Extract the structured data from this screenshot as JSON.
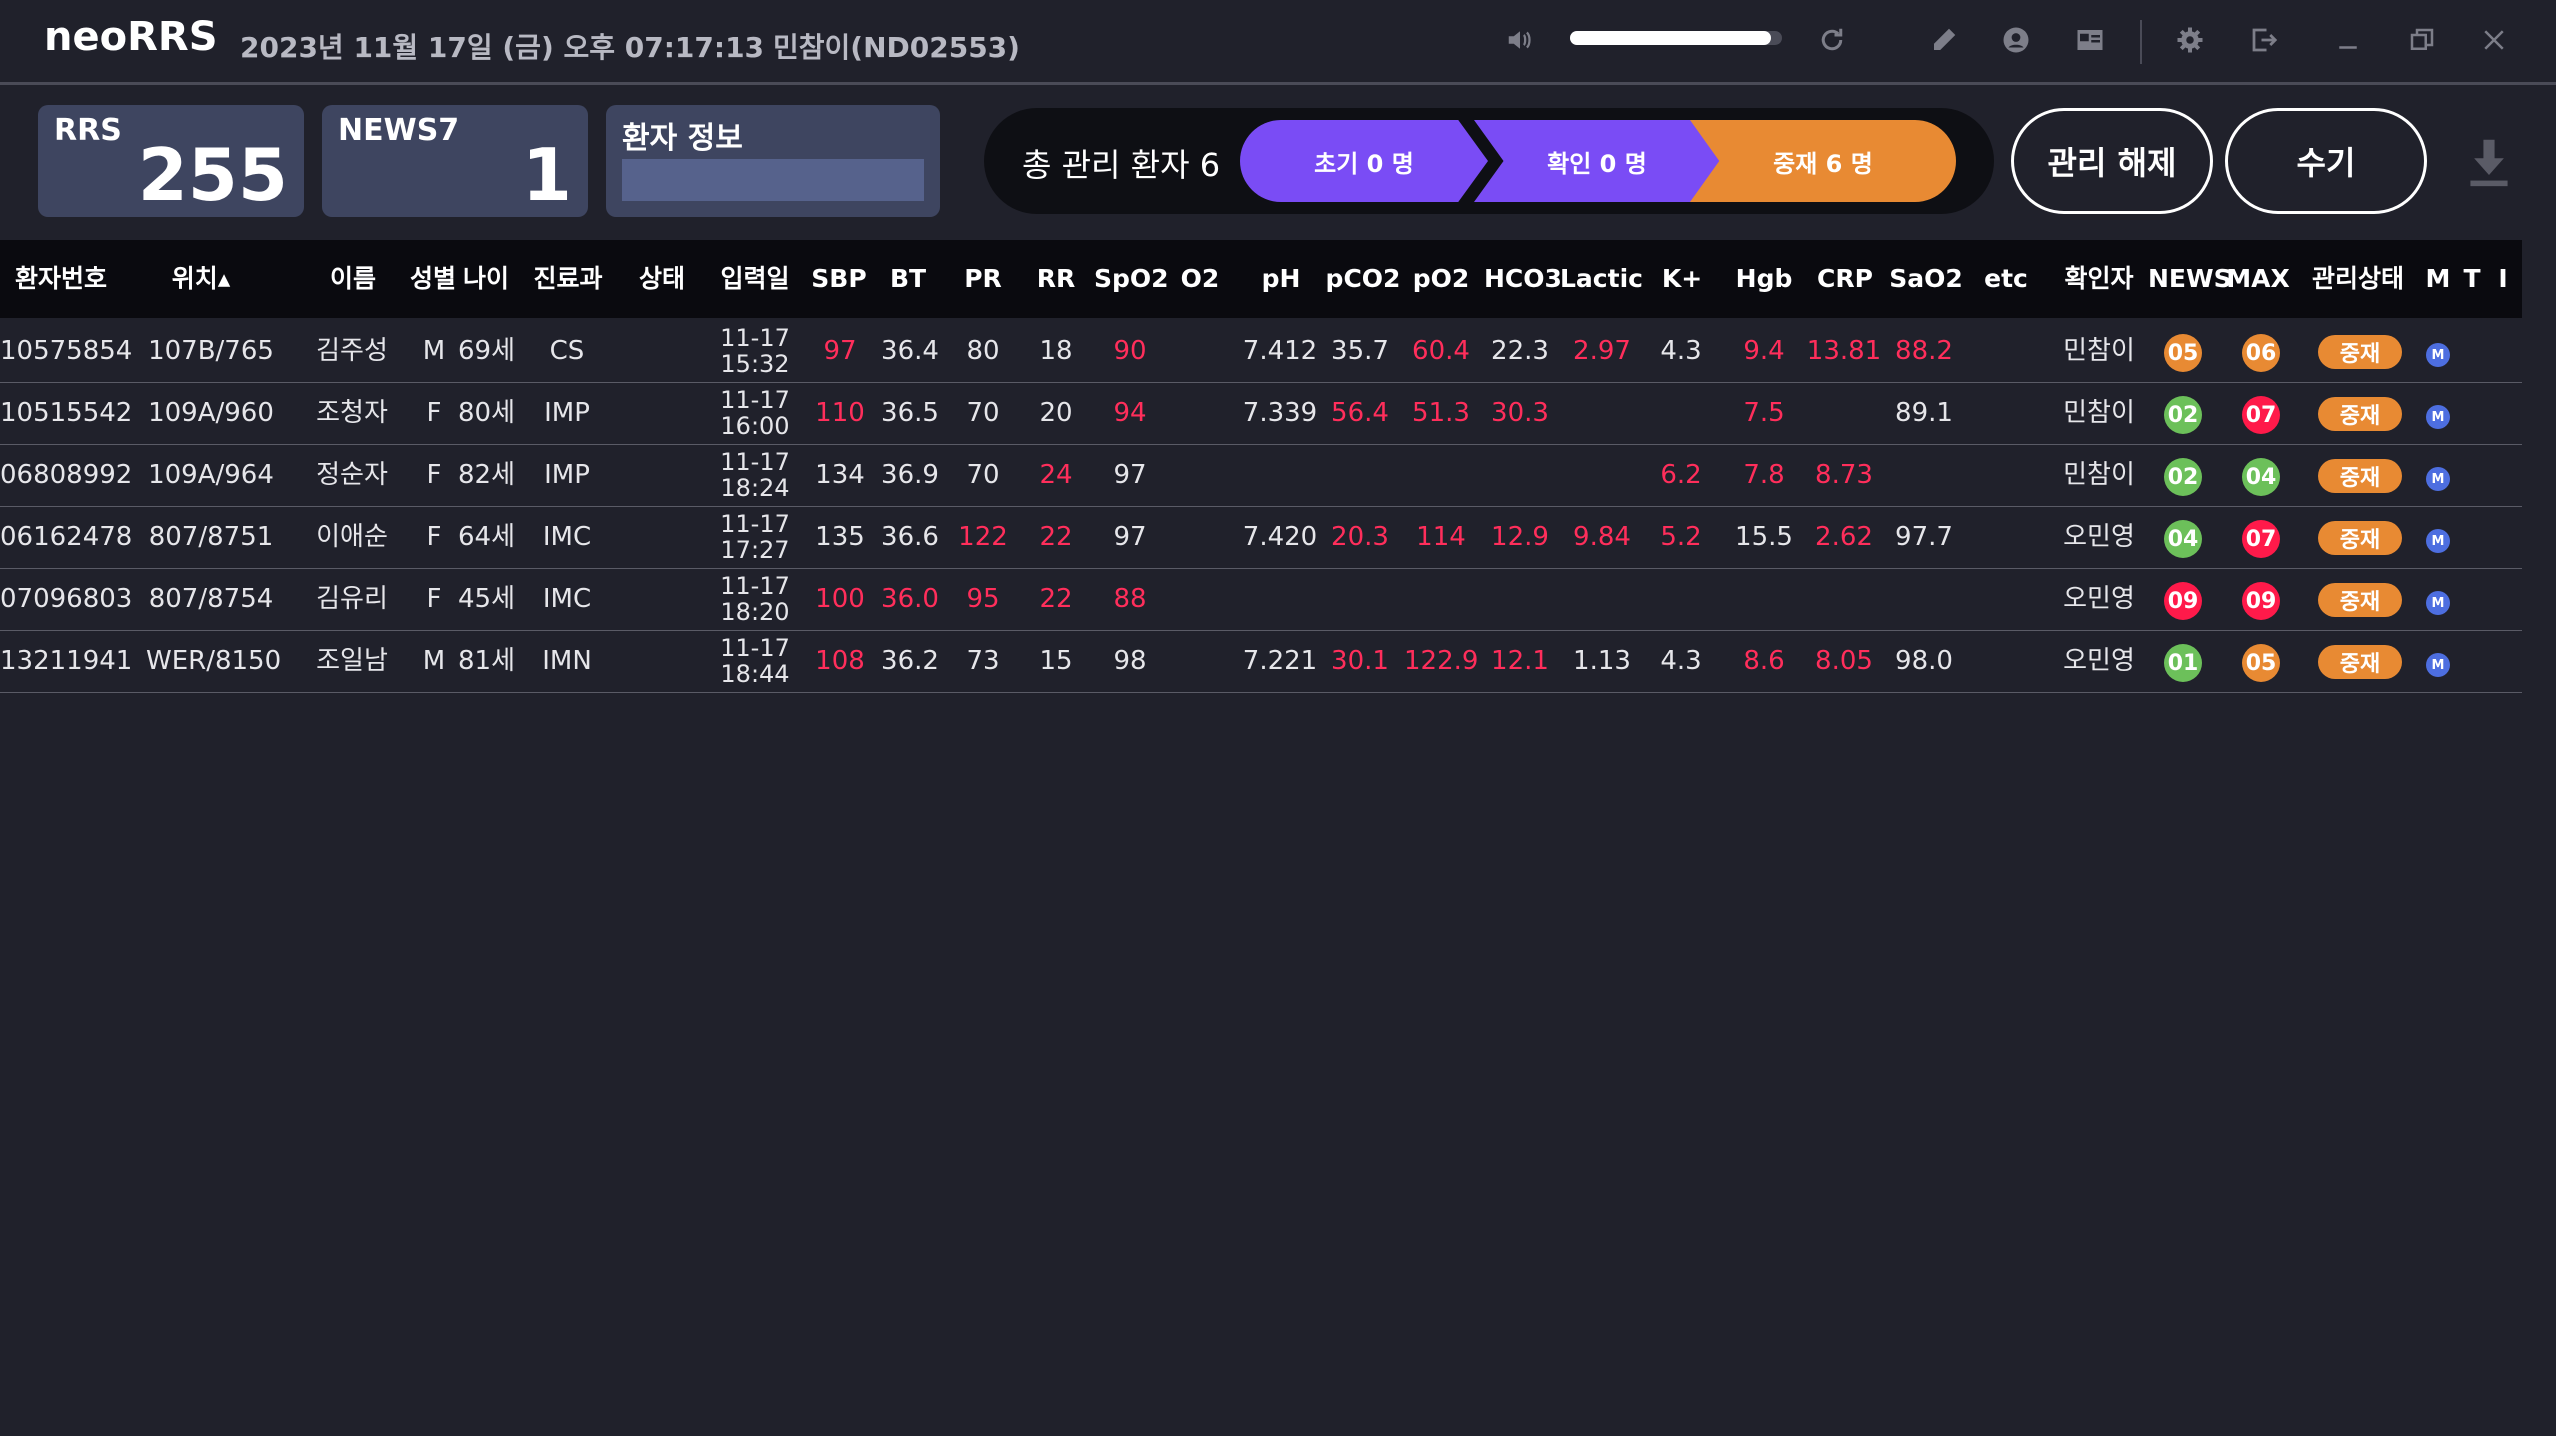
{
  "app": {
    "title": "neoRRS",
    "datetime": "2023년 11월 17일 (금) 오후 07:17:13",
    "user": "민참이(ND02553)",
    "volume_level": 0.95
  },
  "stats": {
    "rrs_label": "RRS",
    "rrs_value": "255",
    "news7_label": "NEWS7",
    "news7_value": "1",
    "patient_info_label": "환자 정보"
  },
  "summary": {
    "total_label": "총 관리 환자 6",
    "initial_label": "초기 0 명",
    "confirm_label": "확인 0 명",
    "intervene_label": "중재 6 명"
  },
  "buttons": {
    "release": "관리 해제",
    "manual": "수기"
  },
  "table": {
    "headers": [
      "환자번호",
      "위치▴",
      "이름",
      "성별",
      "나이",
      "진료과",
      "상태",
      "입력일",
      "SBP",
      "BT",
      "PR",
      "RR",
      "SpO2",
      "O2",
      "pH",
      "pCO2",
      "pO2",
      "HCO3",
      "Lactic",
      "K+",
      "Hgb",
      "CRP",
      "SaO2",
      "etc",
      "확인자",
      "NEWS",
      "MAX",
      "관리상태",
      "M",
      "T",
      "I"
    ],
    "rows": [
      {
        "id": "10575854",
        "loc": "107B/765",
        "name": "김주성",
        "sex": "M",
        "age": "69세",
        "dept": "CS",
        "status": "",
        "date": "11-17",
        "time": "15:32",
        "sbp": "97",
        "bt": "36.4",
        "pr": "80",
        "rr": "18",
        "spo2": "90",
        "o2": "",
        "ph": "7.412",
        "pco2": "35.7",
        "po2": "60.4",
        "hco3": "22.3",
        "lactic": "2.97",
        "k": "4.3",
        "hgb": "9.4",
        "crp": "13.81",
        "sao2": "88.2",
        "etc": "",
        "checker": "민참이",
        "news": "05",
        "max": "06",
        "mgmt": "중재",
        "m": "M"
      },
      {
        "id": "10515542",
        "loc": "109A/960",
        "name": "조청자",
        "sex": "F",
        "age": "80세",
        "dept": "IMP",
        "status": "",
        "date": "11-17",
        "time": "16:00",
        "sbp": "110",
        "bt": "36.5",
        "pr": "70",
        "rr": "20",
        "spo2": "94",
        "o2": "",
        "ph": "7.339",
        "pco2": "56.4",
        "po2": "51.3",
        "hco3": "30.3",
        "lactic": "",
        "k": "",
        "hgb": "7.5",
        "crp": "",
        "sao2": "89.1",
        "etc": "",
        "checker": "민참이",
        "news": "02",
        "max": "07",
        "mgmt": "중재",
        "m": "M"
      },
      {
        "id": "06808992",
        "loc": "109A/964",
        "name": "정순자",
        "sex": "F",
        "age": "82세",
        "dept": "IMP",
        "status": "",
        "date": "11-17",
        "time": "18:24",
        "sbp": "134",
        "bt": "36.9",
        "pr": "70",
        "rr": "24",
        "spo2": "97",
        "o2": "",
        "ph": "",
        "pco2": "",
        "po2": "",
        "hco3": "",
        "lactic": "",
        "k": "6.2",
        "hgb": "7.8",
        "crp": "8.73",
        "sao2": "",
        "etc": "",
        "checker": "민참이",
        "news": "02",
        "max": "04",
        "mgmt": "중재",
        "m": "M"
      },
      {
        "id": "06162478",
        "loc": "807/8751",
        "name": "이애순",
        "sex": "F",
        "age": "64세",
        "dept": "IMC",
        "status": "",
        "date": "11-17",
        "time": "17:27",
        "sbp": "135",
        "bt": "36.6",
        "pr": "122",
        "rr": "22",
        "spo2": "97",
        "o2": "",
        "ph": "7.420",
        "pco2": "20.3",
        "po2": "114",
        "hco3": "12.9",
        "lactic": "9.84",
        "k": "5.2",
        "hgb": "15.5",
        "crp": "2.62",
        "sao2": "97.7",
        "etc": "",
        "checker": "오민영",
        "news": "04",
        "max": "07",
        "mgmt": "중재",
        "m": "M"
      },
      {
        "id": "07096803",
        "loc": "807/8754",
        "name": "김유리",
        "sex": "F",
        "age": "45세",
        "dept": "IMC",
        "status": "",
        "date": "11-17",
        "time": "18:20",
        "sbp": "100",
        "bt": "36.0",
        "pr": "95",
        "rr": "22",
        "spo2": "88",
        "o2": "",
        "ph": "",
        "pco2": "",
        "po2": "",
        "hco3": "",
        "lactic": "",
        "k": "",
        "hgb": "",
        "crp": "",
        "sao2": "",
        "etc": "",
        "checker": "오민영",
        "news": "09",
        "max": "09",
        "mgmt": "중재",
        "m": "M"
      },
      {
        "id": "13211941",
        "loc": "WER/8150",
        "name": "조일남",
        "sex": "M",
        "age": "81세",
        "dept": "IMN",
        "status": "",
        "date": "11-17",
        "time": "18:44",
        "sbp": "108",
        "bt": "36.2",
        "pr": "73",
        "rr": "15",
        "spo2": "98",
        "o2": "",
        "ph": "7.221",
        "pco2": "30.1",
        "po2": "122.9",
        "hco3": "12.1",
        "lactic": "1.13",
        "k": "4.3",
        "hgb": "8.6",
        "crp": "8.05",
        "sao2": "98.0",
        "etc": "",
        "checker": "오민영",
        "news": "01",
        "max": "05",
        "mgmt": "중재",
        "m": "M"
      }
    ],
    "red_cells": [
      [
        "sbp",
        "spo2",
        "po2",
        "lactic",
        "hgb",
        "crp",
        "sao2"
      ],
      [
        "sbp",
        "spo2",
        "pco2",
        "po2",
        "hco3",
        "hgb"
      ],
      [
        "rr",
        "k",
        "hgb",
        "crp"
      ],
      [
        "pr",
        "rr",
        "pco2",
        "po2",
        "hco3",
        "lactic",
        "k",
        "crp"
      ],
      [
        "sbp",
        "bt",
        "pr",
        "rr",
        "spo2"
      ],
      [
        "sbp",
        "pco2",
        "po2",
        "hco3",
        "hgb",
        "crp"
      ]
    ],
    "score_colors": {
      "01": "#6cc05a",
      "02": "#6cc05a",
      "04": "#6cc05a",
      "05": "#e88a33",
      "06": "#e88a33",
      "07": "#ff1a4a",
      "09": "#ff1a4a"
    }
  },
  "colors": {
    "accent_purple": "#7a4cf5",
    "accent_orange": "#e88a33",
    "alert_red": "#ff2e5b"
  }
}
